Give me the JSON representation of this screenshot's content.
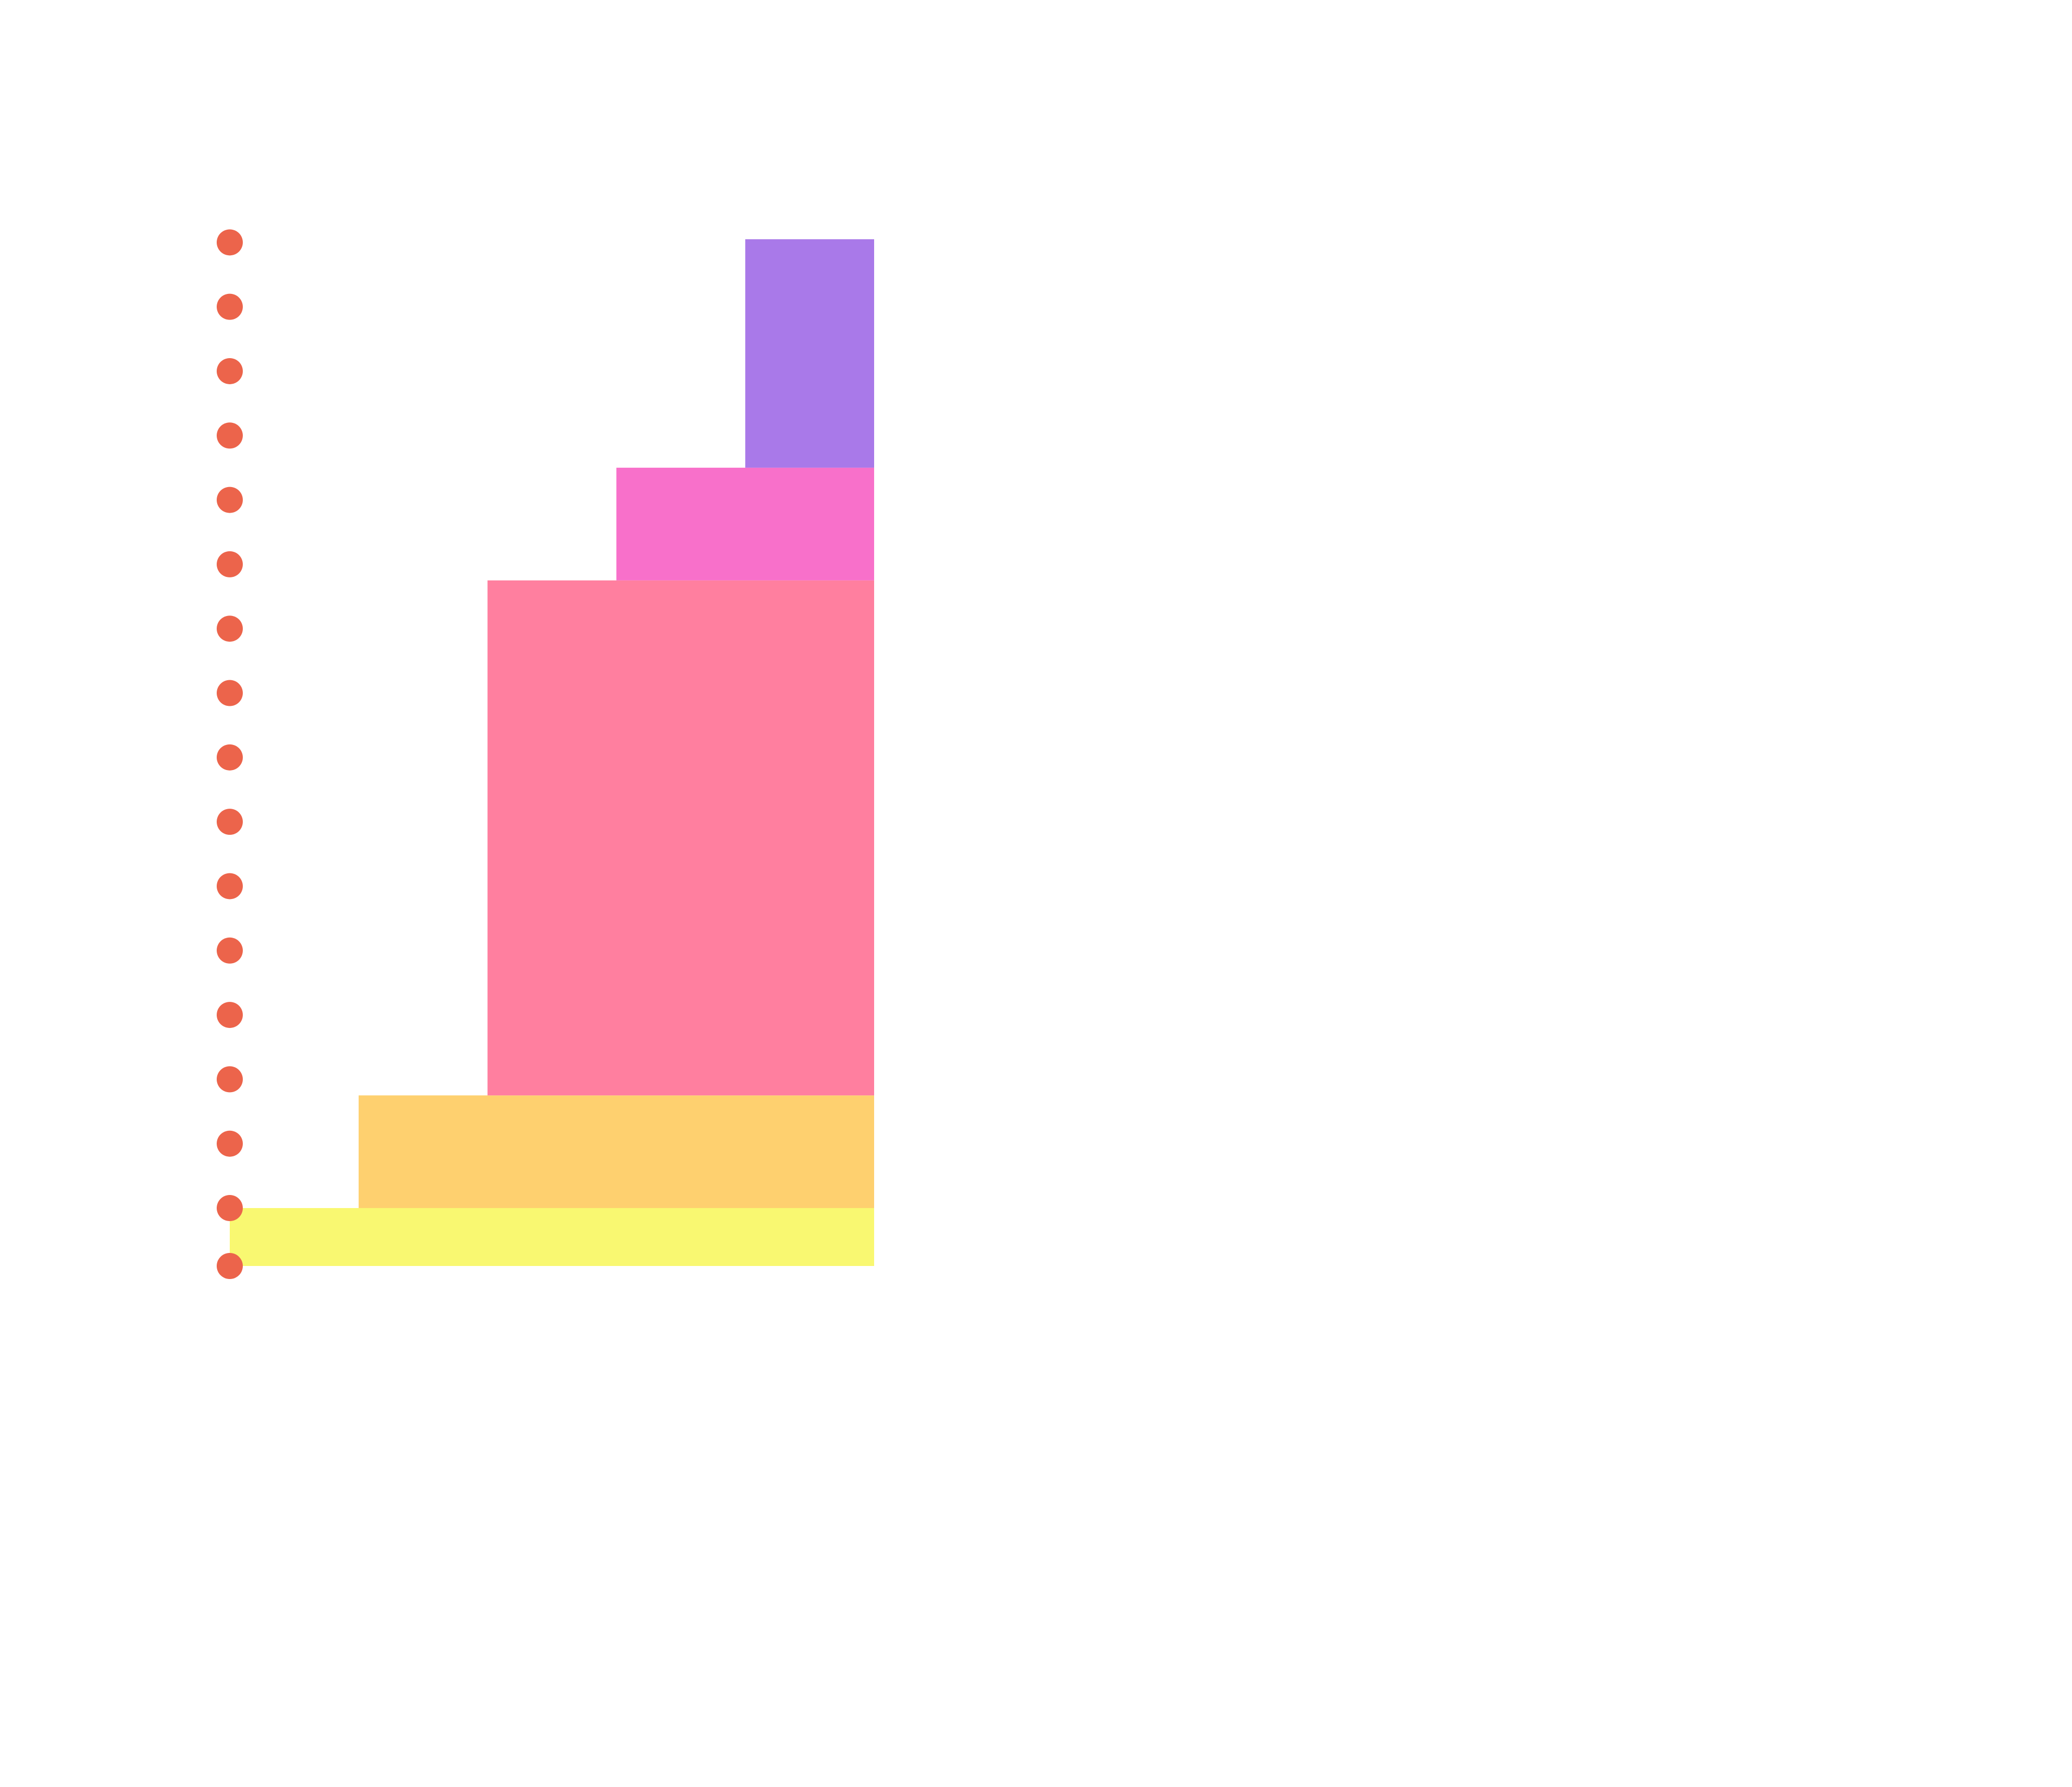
{
  "chart_data": {
    "type": "area",
    "title": "",
    "xlabel": "",
    "ylabel": "",
    "x": [
      0,
      1,
      2,
      3,
      4,
      5
    ],
    "xlim": [
      0,
      5
    ],
    "ylim": [
      0,
      16
    ],
    "grid": false,
    "series": [
      {
        "color": "#f9f871",
        "values": [
          0,
          0.9,
          0.9,
          0.9,
          0.9,
          0.9
        ]
      },
      {
        "color": "#fed06f",
        "values": [
          0,
          0,
          1.75,
          1.75,
          1.75,
          1.75
        ]
      },
      {
        "color": "#ff7f9f",
        "values": [
          0,
          0,
          0,
          8,
          8,
          8
        ]
      },
      {
        "color": "#f870ca",
        "values": [
          0,
          0,
          0,
          0,
          1.75,
          1.75
        ]
      },
      {
        "color": "#a979e9",
        "values": [
          0,
          0,
          0,
          0,
          0,
          3.55
        ]
      }
    ],
    "marker_color": "#ec644b",
    "markers": [
      0,
      0.9,
      1.9,
      2.9,
      3.9,
      4.9,
      5.9,
      6.9,
      7.9,
      8.9,
      9.9,
      10.9,
      11.9,
      12.9,
      13.9,
      14.9,
      15.9
    ]
  }
}
